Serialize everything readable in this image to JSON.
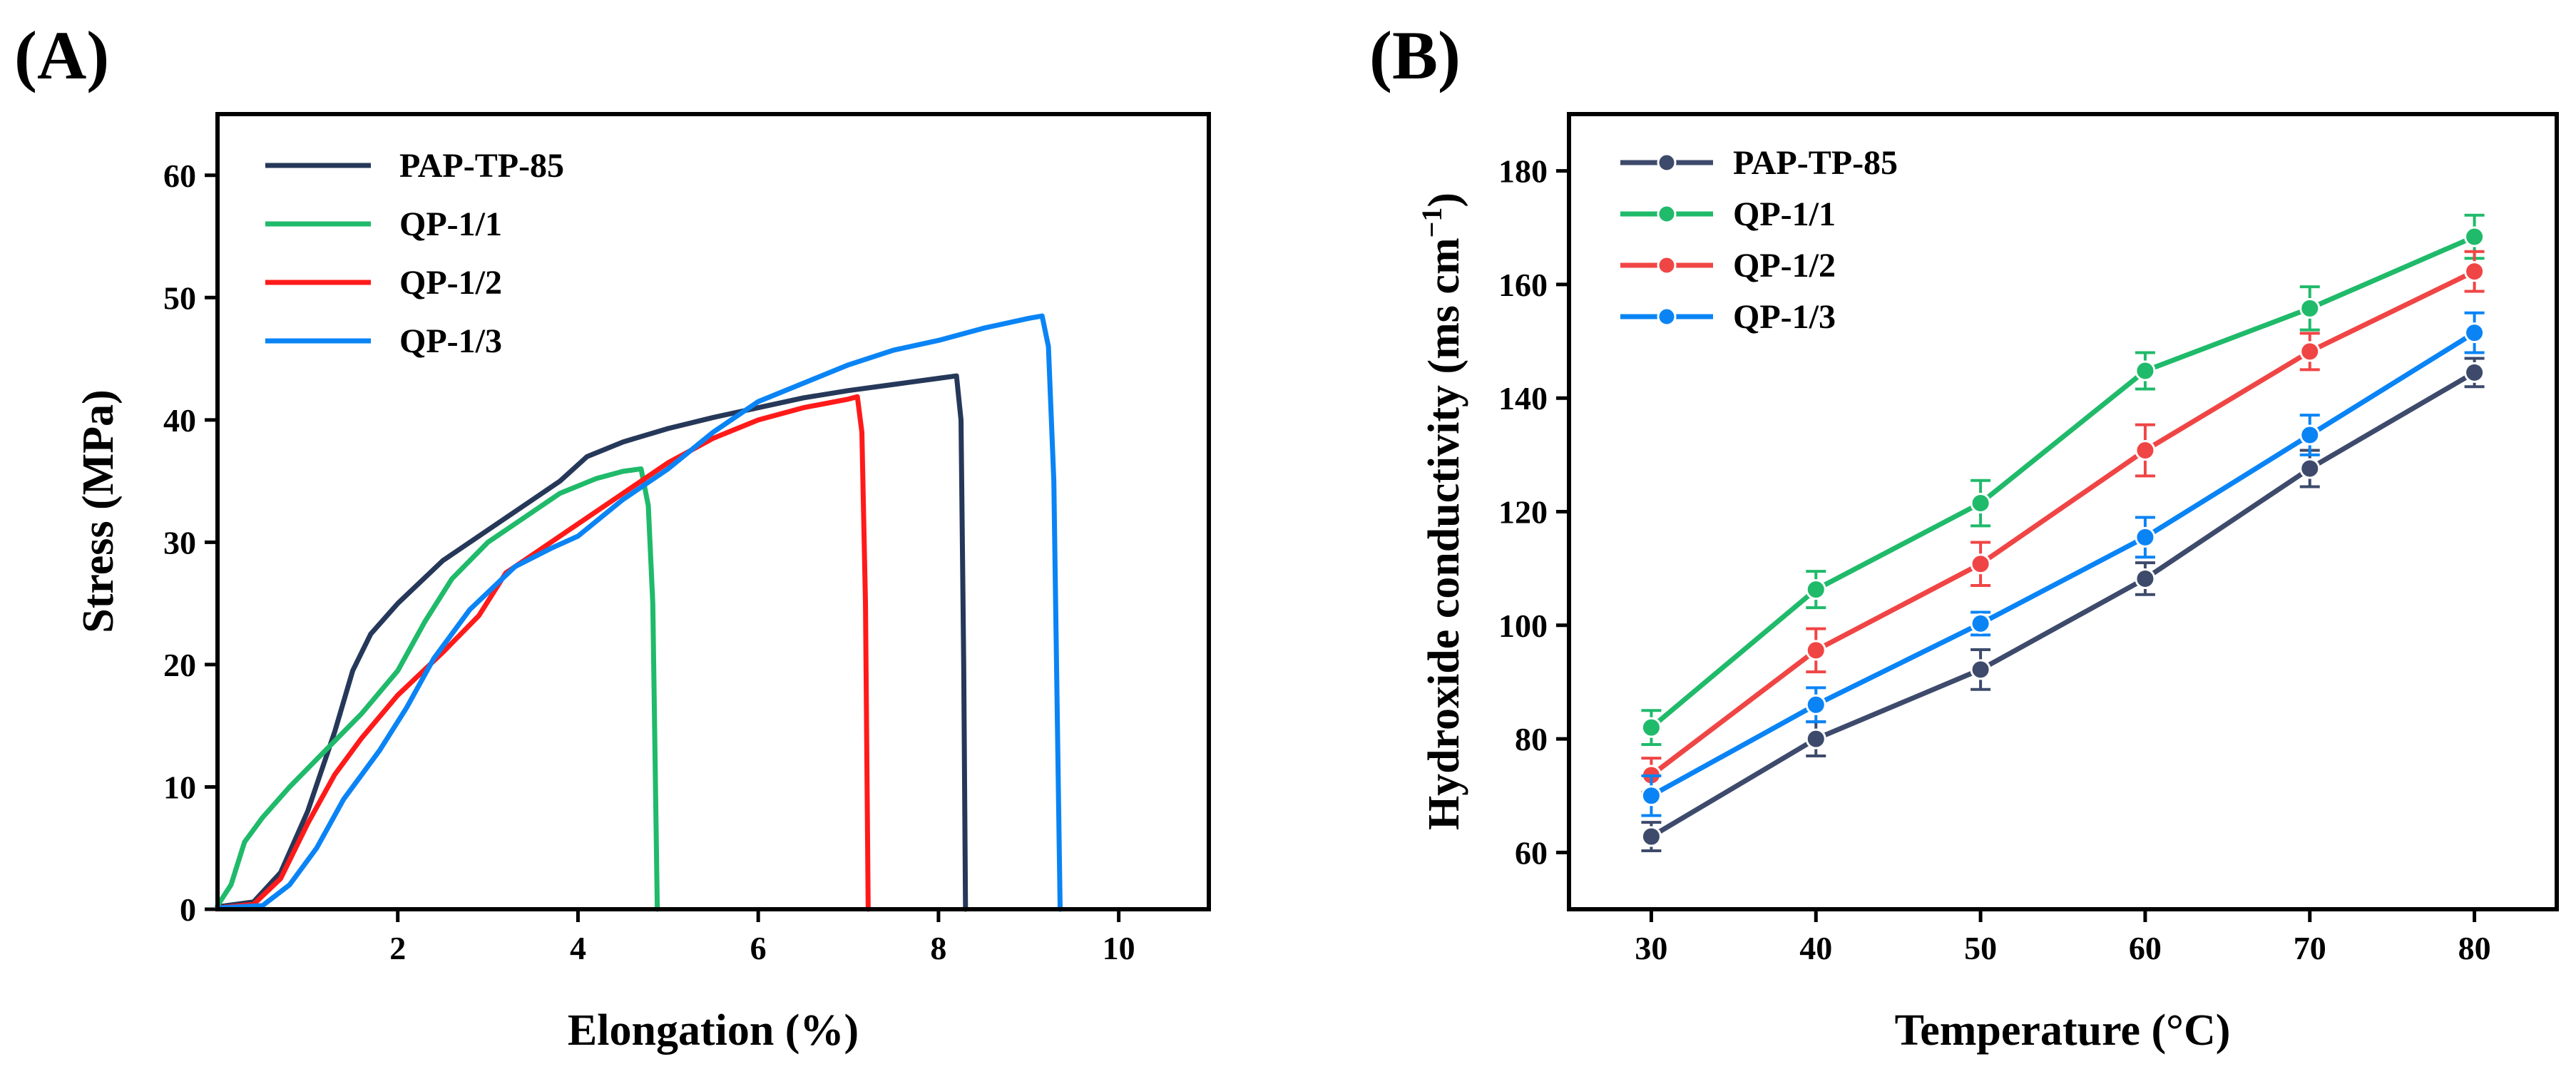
{
  "chart_data": [
    {
      "panel_label": "(A)",
      "type": "line",
      "xlabel": "Elongation (%)",
      "ylabel": "Stress (MPa)",
      "xlim": [
        0,
        11
      ],
      "ylim": [
        0,
        65
      ],
      "xticks": [
        2,
        4,
        6,
        8,
        10
      ],
      "yticks": [
        0,
        10,
        20,
        30,
        40,
        50,
        60
      ],
      "legend_position": "top-left",
      "series": [
        {
          "name": "PAP-TP-85",
          "color": "#263859",
          "points": [
            [
              0,
              0.2
            ],
            [
              0.4,
              0.6
            ],
            [
              0.7,
              3
            ],
            [
              1.0,
              8
            ],
            [
              1.3,
              14.5
            ],
            [
              1.5,
              19.5
            ],
            [
              1.7,
              22.5
            ],
            [
              2,
              25
            ],
            [
              2.5,
              28.5
            ],
            [
              3,
              31
            ],
            [
              3.5,
              33.5
            ],
            [
              3.8,
              35
            ],
            [
              4.1,
              37
            ],
            [
              4.5,
              38.2
            ],
            [
              5,
              39.3
            ],
            [
              5.5,
              40.2
            ],
            [
              6,
              41
            ],
            [
              6.5,
              41.8
            ],
            [
              7,
              42.4
            ],
            [
              7.5,
              42.9
            ],
            [
              8,
              43.4
            ],
            [
              8.2,
              43.6
            ],
            [
              8.25,
              40
            ],
            [
              8.28,
              20
            ],
            [
              8.3,
              0
            ]
          ]
        },
        {
          "name": "QP-1/1",
          "color": "#1fba6a",
          "points": [
            [
              0,
              0.3
            ],
            [
              0.15,
              2
            ],
            [
              0.3,
              5.5
            ],
            [
              0.5,
              7.5
            ],
            [
              0.8,
              10
            ],
            [
              1.2,
              13
            ],
            [
              1.6,
              16
            ],
            [
              2,
              19.5
            ],
            [
              2.3,
              23.5
            ],
            [
              2.6,
              27
            ],
            [
              3,
              30
            ],
            [
              3.5,
              32.5
            ],
            [
              3.8,
              34
            ],
            [
              4.2,
              35.2
            ],
            [
              4.5,
              35.8
            ],
            [
              4.7,
              36
            ],
            [
              4.78,
              33
            ],
            [
              4.83,
              25
            ],
            [
              4.86,
              10
            ],
            [
              4.88,
              0
            ]
          ]
        },
        {
          "name": "QP-1/2",
          "color": "#ff1a1a",
          "points": [
            [
              0,
              0.1
            ],
            [
              0.4,
              0.4
            ],
            [
              0.7,
              2.5
            ],
            [
              1,
              7
            ],
            [
              1.3,
              11
            ],
            [
              1.6,
              14
            ],
            [
              2,
              17.5
            ],
            [
              2.5,
              21
            ],
            [
              2.9,
              24
            ],
            [
              3.2,
              27.5
            ],
            [
              3.6,
              29.5
            ],
            [
              4,
              31.5
            ],
            [
              4.5,
              34
            ],
            [
              5,
              36.5
            ],
            [
              5.5,
              38.5
            ],
            [
              6,
              40
            ],
            [
              6.5,
              41
            ],
            [
              7,
              41.7
            ],
            [
              7.1,
              41.9
            ],
            [
              7.15,
              39
            ],
            [
              7.19,
              25
            ],
            [
              7.22,
              0
            ]
          ]
        },
        {
          "name": "QP-1/3",
          "color": "#0a84f5",
          "points": [
            [
              0,
              0.1
            ],
            [
              0.5,
              0.3
            ],
            [
              0.8,
              2
            ],
            [
              1.1,
              5
            ],
            [
              1.4,
              9
            ],
            [
              1.8,
              13
            ],
            [
              2.1,
              16.5
            ],
            [
              2.4,
              20.5
            ],
            [
              2.8,
              24.5
            ],
            [
              3.3,
              28
            ],
            [
              3.7,
              29.5
            ],
            [
              4,
              30.5
            ],
            [
              4.5,
              33.5
            ],
            [
              5,
              36
            ],
            [
              5.5,
              39
            ],
            [
              6,
              41.5
            ],
            [
              6.5,
              43
            ],
            [
              7,
              44.5
            ],
            [
              7.5,
              45.7
            ],
            [
              8,
              46.5
            ],
            [
              8.5,
              47.5
            ],
            [
              9,
              48.3
            ],
            [
              9.15,
              48.5
            ],
            [
              9.22,
              46
            ],
            [
              9.28,
              35
            ],
            [
              9.32,
              15
            ],
            [
              9.35,
              0
            ]
          ]
        }
      ]
    },
    {
      "panel_label": "(B)",
      "type": "line",
      "markers": true,
      "error_bars": true,
      "xlabel": "Temperature (°C)",
      "ylabel_main": "Hydroxide conductivity (ms cm",
      "ylabel_sup": "−1",
      "ylabel_end": ")",
      "xlim": [
        25,
        85
      ],
      "ylim": [
        50,
        190
      ],
      "xticks": [
        30,
        40,
        50,
        60,
        70,
        80
      ],
      "yticks": [
        60,
        80,
        100,
        120,
        140,
        160,
        180
      ],
      "legend_position": "top-left",
      "x": [
        30,
        40,
        50,
        60,
        70,
        80
      ],
      "series": [
        {
          "name": "PAP-TP-85",
          "color": "#3d4a6b",
          "values": [
            62.8,
            80.0,
            92.2,
            108.2,
            127.6,
            144.5
          ],
          "errors": [
            2.5,
            3.0,
            3.5,
            2.8,
            3.2,
            2.5
          ]
        },
        {
          "name": "QP-1/1",
          "color": "#1fba6a",
          "values": [
            82.0,
            106.3,
            121.5,
            144.8,
            155.8,
            168.4
          ],
          "errors": [
            3.0,
            3.2,
            4.0,
            3.2,
            3.8,
            3.8
          ]
        },
        {
          "name": "QP-1/2",
          "color": "#f04545",
          "values": [
            73.6,
            95.6,
            110.8,
            130.8,
            148.2,
            162.3
          ],
          "errors": [
            3.0,
            3.8,
            3.8,
            4.5,
            3.2,
            3.5
          ]
        },
        {
          "name": "QP-1/3",
          "color": "#0a84f5",
          "values": [
            70.0,
            86.0,
            100.3,
            115.5,
            133.5,
            151.5
          ],
          "errors": [
            3.5,
            3.0,
            2.0,
            3.5,
            3.5,
            3.5
          ]
        }
      ]
    }
  ]
}
